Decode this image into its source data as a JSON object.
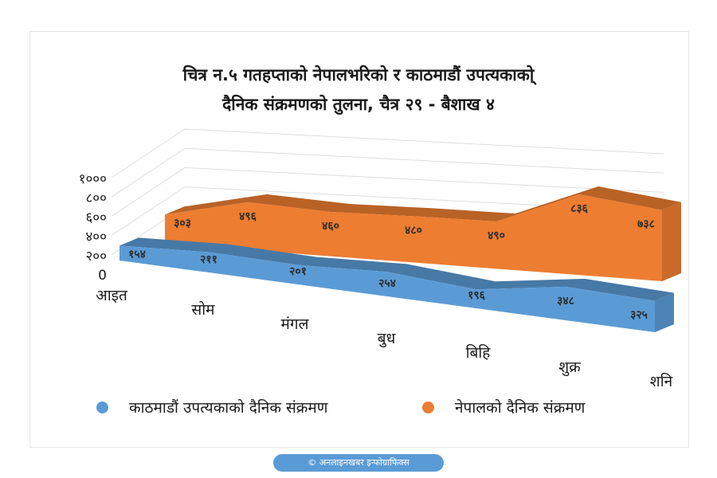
{
  "title_line1": "चित्र न.५ गतहप्ताको नेपालभरिको र काठमाडौं उपत्यकाको्",
  "title_line2": "दैनिक संक्रमणको तुलना, चैत्र २९ - बैशाख ४",
  "credit": "© अनलाइनखबर इन्फोग्राफिक्स",
  "colors": {
    "kathmandu": "#5b9bd5",
    "nepal": "#ed7d31"
  },
  "chart_data": {
    "type": "area",
    "view": "3d",
    "categories": [
      "आइत",
      "सोम",
      "मंगल",
      "बुध",
      "बिहि",
      "शुक्र",
      "शनि"
    ],
    "ylim": [
      0,
      1000
    ],
    "yticks": [
      0,
      200,
      400,
      600,
      800,
      1000
    ],
    "ytick_labels": [
      "0",
      "२००",
      "४००",
      "६००",
      "८००",
      "१०००"
    ],
    "grid": true,
    "legend_position": "bottom",
    "series": [
      {
        "name": "काठमाडौं उपत्यकाको दैनिक संक्रमण",
        "values": [
          154,
          211,
          201,
          254,
          196,
          348,
          325
        ],
        "labels": [
          "१५४",
          "२११",
          "२०१",
          "२५४",
          "१९६",
          "३४८",
          "३२५"
        ],
        "color": "#5b9bd5"
      },
      {
        "name": "नेपालको दैनिक संक्रमण",
        "values": [
          303,
          496,
          460,
          480,
          490,
          836,
          738
        ],
        "labels": [
          "३०३",
          "४९६",
          "४६०",
          "४८०",
          "४९०",
          "८३६",
          "७३८"
        ],
        "color": "#ed7d31"
      }
    ]
  }
}
